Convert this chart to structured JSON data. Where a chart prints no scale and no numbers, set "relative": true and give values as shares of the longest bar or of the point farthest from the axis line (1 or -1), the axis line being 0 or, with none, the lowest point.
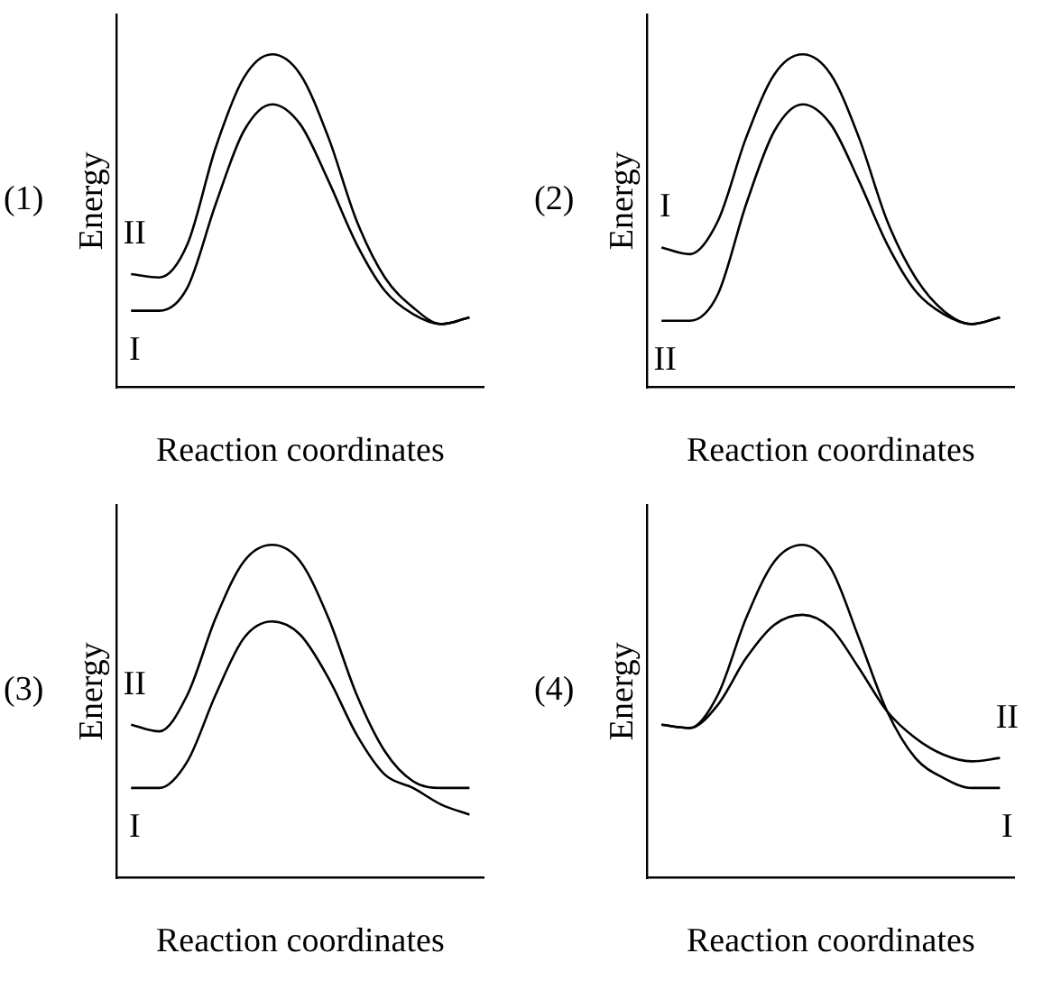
{
  "chart_data": [
    {
      "type": "line",
      "title": "(1)",
      "xlabel": "Reaction coordinates",
      "ylabel": "Energy",
      "relative": true,
      "legend": false,
      "marker": "none",
      "categories": [
        null,
        null,
        null,
        null,
        null,
        null,
        null,
        null,
        null,
        null,
        null,
        null,
        null
      ],
      "series": [
        {
          "name": "II",
          "color": "#000000",
          "values": [
            0.34,
            0.33,
            0.43,
            0.72,
            0.93,
            1,
            0.94,
            0.75,
            0.5,
            0.33,
            0.24,
            0.19,
            0.21
          ]
        },
        {
          "name": "I",
          "color": "#000000",
          "values": [
            0.23,
            0.23,
            0.3,
            0.55,
            0.77,
            0.85,
            0.79,
            0.62,
            0.43,
            0.29,
            0.22,
            0.19,
            0.21
          ]
        }
      ]
    },
    {
      "type": "line",
      "title": "(2)",
      "xlabel": "Reaction coordinates",
      "ylabel": "Energy",
      "relative": true,
      "legend": false,
      "marker": "none",
      "categories": [
        null,
        null,
        null,
        null,
        null,
        null,
        null,
        null,
        null,
        null,
        null,
        null,
        null
      ],
      "series": [
        {
          "name": "I",
          "color": "#000000",
          "values": [
            0.42,
            0.4,
            0.5,
            0.75,
            0.94,
            1,
            0.94,
            0.75,
            0.5,
            0.33,
            0.23,
            0.19,
            0.21
          ]
        },
        {
          "name": "II",
          "color": "#000000",
          "values": [
            0.2,
            0.2,
            0.28,
            0.55,
            0.77,
            0.85,
            0.79,
            0.62,
            0.43,
            0.29,
            0.22,
            0.19,
            0.21
          ]
        }
      ]
    },
    {
      "type": "line",
      "title": "(3)",
      "xlabel": "Reaction coordinates",
      "ylabel": "Energy",
      "relative": true,
      "legend": false,
      "marker": "none",
      "categories": [
        null,
        null,
        null,
        null,
        null,
        null,
        null,
        null,
        null,
        null,
        null,
        null,
        null
      ],
      "series": [
        {
          "name": "II",
          "color": "#000000",
          "values": [
            0.46,
            0.44,
            0.55,
            0.78,
            0.95,
            1,
            0.95,
            0.78,
            0.55,
            0.38,
            0.29,
            0.27,
            0.27
          ]
        },
        {
          "name": "I",
          "color": "#000000",
          "values": [
            0.27,
            0.27,
            0.35,
            0.55,
            0.72,
            0.77,
            0.73,
            0.6,
            0.43,
            0.31,
            0.27,
            0.22,
            0.19
          ]
        }
      ]
    },
    {
      "type": "line",
      "title": "(4)",
      "xlabel": "Reaction coordinates",
      "ylabel": "Energy",
      "relative": true,
      "legend": false,
      "marker": "none",
      "categories": [
        null,
        null,
        null,
        null,
        null,
        null,
        null,
        null,
        null,
        null,
        null,
        null,
        null
      ],
      "series": [
        {
          "name": "I",
          "color": "#000000",
          "values": [
            0.46,
            0.45,
            0.55,
            0.78,
            0.95,
            1,
            0.93,
            0.72,
            0.5,
            0.36,
            0.3,
            0.27,
            0.27
          ]
        },
        {
          "name": "II",
          "color": "#000000",
          "values": [
            0.46,
            0.45,
            0.52,
            0.66,
            0.76,
            0.79,
            0.75,
            0.63,
            0.5,
            0.42,
            0.37,
            0.35,
            0.36
          ]
        }
      ]
    }
  ]
}
